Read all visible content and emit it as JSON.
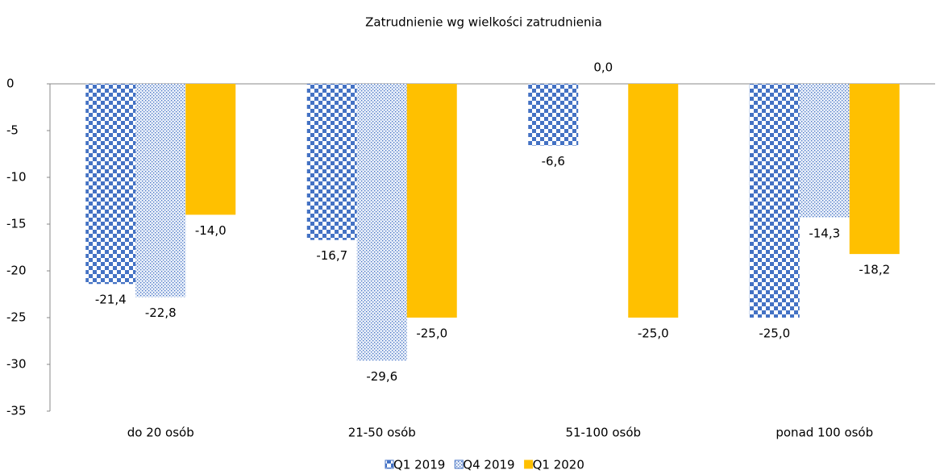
{
  "chart_data": {
    "type": "bar",
    "title": "Zatrudnienie wg wielkości zatrudnienia",
    "categories": [
      "do 20 osób",
      "21-50 osób",
      "51-100 osób",
      "ponad 100 osób"
    ],
    "series": [
      {
        "name": "Q1 2019",
        "color": "#4472c4",
        "pattern": "checker",
        "values": [
          -21.4,
          -16.7,
          -6.6,
          -25.0
        ],
        "value_labels": [
          "-21,4",
          "-16,7",
          "-6,6",
          "-25,0"
        ]
      },
      {
        "name": "Q4 2019",
        "color": "#4472c4",
        "pattern": "dots",
        "values": [
          -22.8,
          -29.6,
          0.0,
          -14.3
        ],
        "value_labels": [
          "-22,8",
          "-29,6",
          "0,0",
          "-14,3"
        ]
      },
      {
        "name": "Q1 2020",
        "color": "#ffc000",
        "pattern": "solid",
        "values": [
          -14.0,
          -25.0,
          -25.0,
          -18.2
        ],
        "value_labels": [
          "-14,0",
          "-25,0",
          "-25,0",
          "-18,2"
        ]
      }
    ],
    "ylim": [
      -35,
      0
    ],
    "yticks": [
      0,
      -5,
      -10,
      -15,
      -20,
      -25,
      -30,
      -35
    ],
    "legend": "bottom"
  }
}
